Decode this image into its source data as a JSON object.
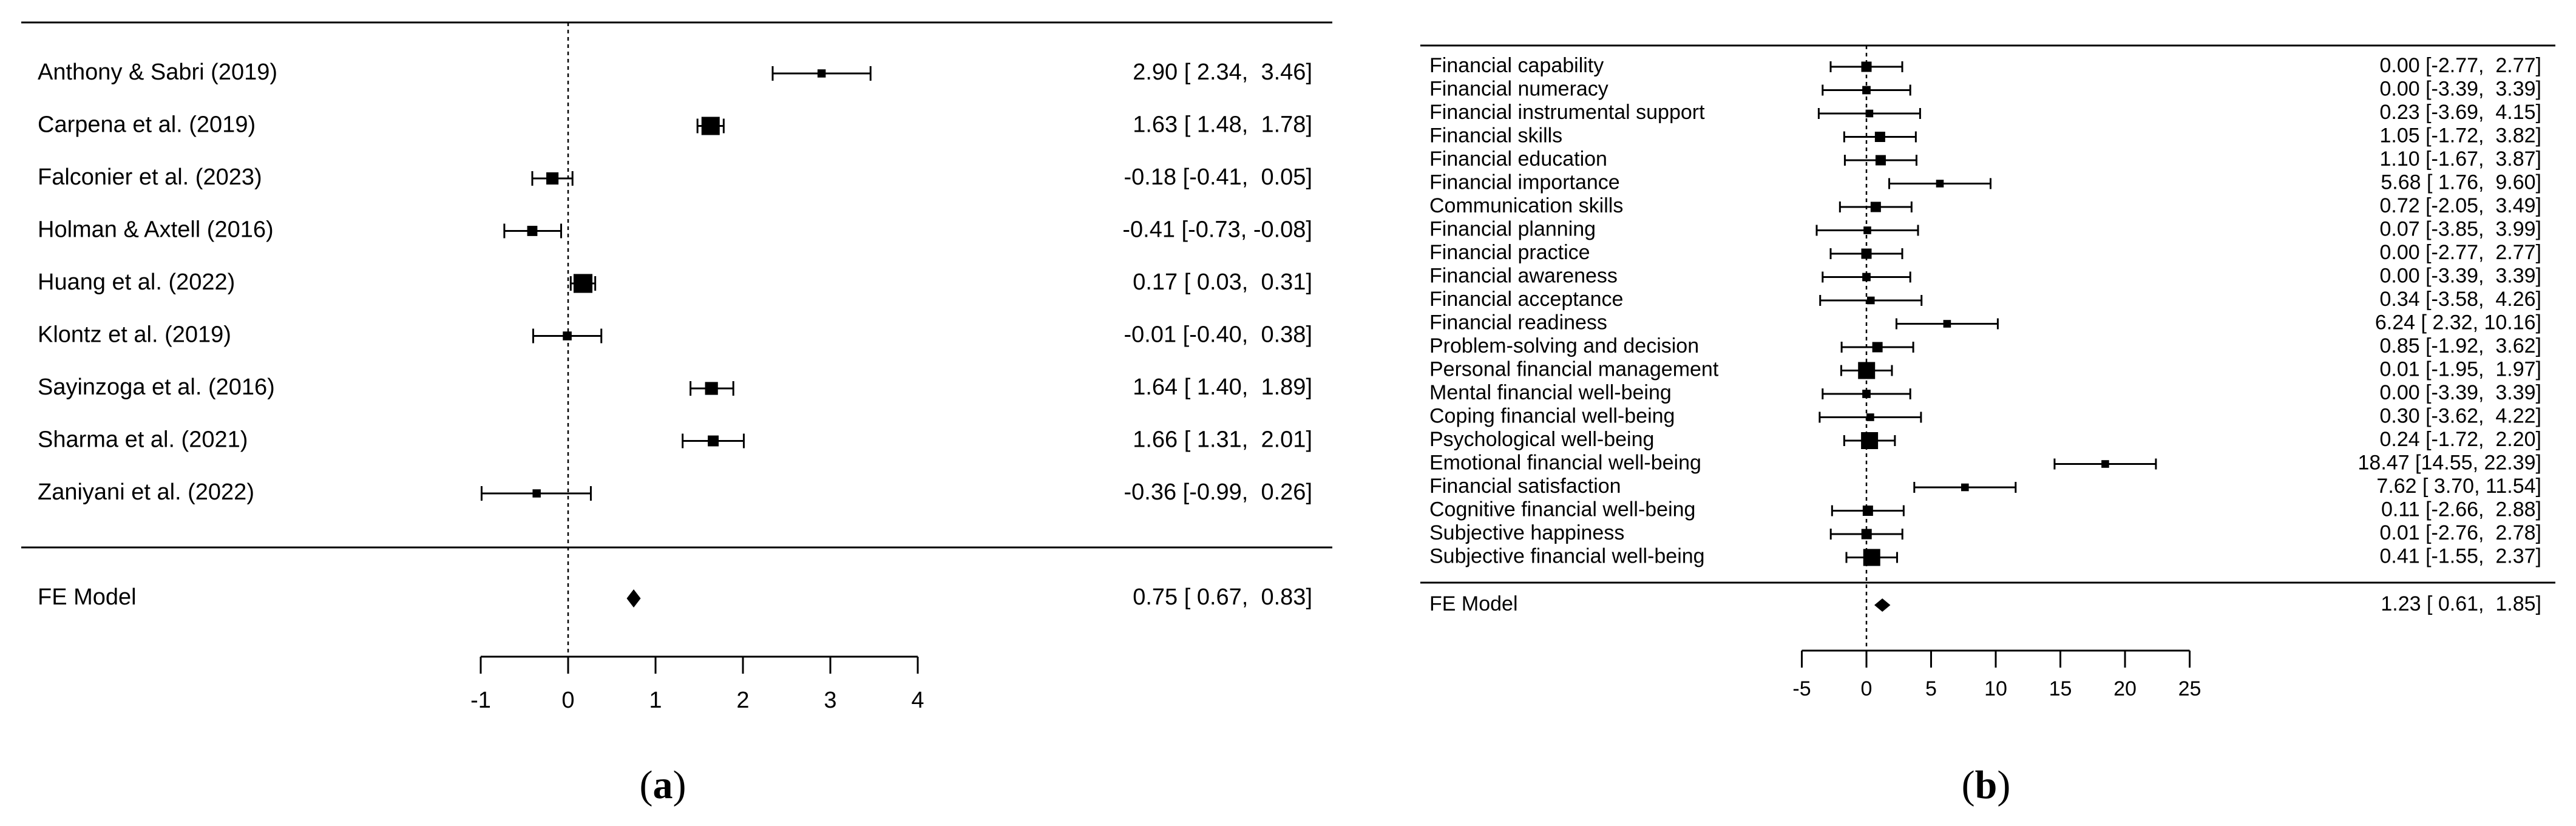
{
  "chart_data": [
    {
      "type": "forest",
      "panel_label": "a",
      "studies": [
        {
          "label": "Anthony & Sabri (2019)",
          "estimate": 2.9,
          "ci_low": 2.34,
          "ci_high": 3.46,
          "ci_text": "2.90 [ 2.34,  3.46]",
          "weight": 0.25
        },
        {
          "label": "Carpena et al. (2019)",
          "estimate": 1.63,
          "ci_low": 1.48,
          "ci_high": 1.78,
          "ci_text": "1.63 [ 1.48,  1.78]",
          "weight": 1.0
        },
        {
          "label": "Falconier et al. (2023)",
          "estimate": -0.18,
          "ci_low": -0.41,
          "ci_high": 0.05,
          "ci_text": "-0.18 [-0.41,  0.05]",
          "weight": 0.55
        },
        {
          "label": "Holman & Axtell (2016)",
          "estimate": -0.41,
          "ci_low": -0.73,
          "ci_high": -0.08,
          "ci_text": "-0.41 [-0.73, -0.08]",
          "weight": 0.4
        },
        {
          "label": "Huang et al. (2022)",
          "estimate": 0.17,
          "ci_low": 0.03,
          "ci_high": 0.31,
          "ci_text": "0.17 [ 0.03,  0.31]",
          "weight": 1.05
        },
        {
          "label": "Klontz et al. (2019)",
          "estimate": -0.01,
          "ci_low": -0.4,
          "ci_high": 0.38,
          "ci_text": "-0.01 [-0.40,  0.38]",
          "weight": 0.3
        },
        {
          "label": "Sayinzoga et al. (2016)",
          "estimate": 1.64,
          "ci_low": 1.4,
          "ci_high": 1.89,
          "ci_text": "1.64 [ 1.40,  1.89]",
          "weight": 0.6
        },
        {
          "label": "Sharma et al. (2021)",
          "estimate": 1.66,
          "ci_low": 1.31,
          "ci_high": 2.01,
          "ci_text": "1.66 [ 1.31,  2.01]",
          "weight": 0.45
        },
        {
          "label": "Zaniyani et al. (2022)",
          "estimate": -0.36,
          "ci_low": -0.99,
          "ci_high": 0.26,
          "ci_text": "-0.36 [-0.99,  0.26]",
          "weight": 0.25
        }
      ],
      "summary": {
        "label": "FE Model",
        "estimate": 0.75,
        "ci_low": 0.67,
        "ci_high": 0.83,
        "ci_text": "0.75 [ 0.67,  0.83]"
      },
      "reference_line": 0,
      "xlim": [
        -1,
        4
      ],
      "xticks": [
        -1,
        0,
        1,
        2,
        3,
        4
      ],
      "xtick_labels": [
        "-1",
        "0",
        "1",
        "2",
        "3",
        "4"
      ]
    },
    {
      "type": "forest",
      "panel_label": "b",
      "studies": [
        {
          "label": "Financial capability",
          "estimate": 0.0,
          "ci_low": -2.77,
          "ci_high": 2.77,
          "ci_text": "0.00 [-2.77,  2.77]",
          "weight": 0.5
        },
        {
          "label": "Financial numeracy",
          "estimate": 0.0,
          "ci_low": -3.39,
          "ci_high": 3.39,
          "ci_text": "0.00 [-3.39,  3.39]",
          "weight": 0.35
        },
        {
          "label": "Financial instrumental support",
          "estimate": 0.23,
          "ci_low": -3.69,
          "ci_high": 4.15,
          "ci_text": "0.23 [-3.69,  4.15]",
          "weight": 0.3
        },
        {
          "label": "Financial skills",
          "estimate": 1.05,
          "ci_low": -1.72,
          "ci_high": 3.82,
          "ci_text": "1.05 [-1.72,  3.82]",
          "weight": 0.5
        },
        {
          "label": "Financial education",
          "estimate": 1.1,
          "ci_low": -1.67,
          "ci_high": 3.87,
          "ci_text": "1.10 [-1.67,  3.87]",
          "weight": 0.5
        },
        {
          "label": "Financial importance",
          "estimate": 5.68,
          "ci_low": 1.76,
          "ci_high": 9.6,
          "ci_text": "5.68 [ 1.76,  9.60]",
          "weight": 0.3
        },
        {
          "label": "Communication skills",
          "estimate": 0.72,
          "ci_low": -2.05,
          "ci_high": 3.49,
          "ci_text": "0.72 [-2.05,  3.49]",
          "weight": 0.5
        },
        {
          "label": "Financial planning",
          "estimate": 0.07,
          "ci_low": -3.85,
          "ci_high": 3.99,
          "ci_text": "0.07 [-3.85,  3.99]",
          "weight": 0.3
        },
        {
          "label": "Financial practice",
          "estimate": 0.0,
          "ci_low": -2.77,
          "ci_high": 2.77,
          "ci_text": "0.00 [-2.77,  2.77]",
          "weight": 0.5
        },
        {
          "label": "Financial awareness",
          "estimate": 0.0,
          "ci_low": -3.39,
          "ci_high": 3.39,
          "ci_text": "0.00 [-3.39,  3.39]",
          "weight": 0.35
        },
        {
          "label": "Financial acceptance",
          "estimate": 0.34,
          "ci_low": -3.58,
          "ci_high": 4.26,
          "ci_text": "0.34 [-3.58,  4.26]",
          "weight": 0.3
        },
        {
          "label": "Financial readiness",
          "estimate": 6.24,
          "ci_low": 2.32,
          "ci_high": 10.16,
          "ci_text": "6.24 [ 2.32, 10.16]",
          "weight": 0.3
        },
        {
          "label": "Problem-solving and decision",
          "estimate": 0.85,
          "ci_low": -1.92,
          "ci_high": 3.62,
          "ci_text": "0.85 [-1.92,  3.62]",
          "weight": 0.5
        },
        {
          "label": "Personal financial management",
          "estimate": 0.01,
          "ci_low": -1.95,
          "ci_high": 1.97,
          "ci_text": "0.01 [-1.95,  1.97]",
          "weight": 1.0
        },
        {
          "label": "Mental financial well-being",
          "estimate": 0.0,
          "ci_low": -3.39,
          "ci_high": 3.39,
          "ci_text": "0.00 [-3.39,  3.39]",
          "weight": 0.35
        },
        {
          "label": "Coping financial well-being",
          "estimate": 0.3,
          "ci_low": -3.62,
          "ci_high": 4.22,
          "ci_text": "0.30 [-3.62,  4.22]",
          "weight": 0.3
        },
        {
          "label": "Psychological well-being",
          "estimate": 0.24,
          "ci_low": -1.72,
          "ci_high": 2.2,
          "ci_text": "0.24 [-1.72,  2.20]",
          "weight": 1.0
        },
        {
          "label": "Emotional financial well-being",
          "estimate": 18.47,
          "ci_low": 14.55,
          "ci_high": 22.39,
          "ci_text": "18.47 [14.55, 22.39]",
          "weight": 0.3
        },
        {
          "label": "Financial satisfaction",
          "estimate": 7.62,
          "ci_low": 3.7,
          "ci_high": 11.54,
          "ci_text": "7.62 [ 3.70, 11.54]",
          "weight": 0.3
        },
        {
          "label": "Cognitive financial well-being",
          "estimate": 0.11,
          "ci_low": -2.66,
          "ci_high": 2.88,
          "ci_text": "0.11 [-2.66,  2.88]",
          "weight": 0.5
        },
        {
          "label": "Subjective happiness",
          "estimate": 0.01,
          "ci_low": -2.76,
          "ci_high": 2.78,
          "ci_text": "0.01 [-2.76,  2.78]",
          "weight": 0.5
        },
        {
          "label": "Subjective financial well-being",
          "estimate": 0.41,
          "ci_low": -1.55,
          "ci_high": 2.37,
          "ci_text": "0.41 [-1.55,  2.37]",
          "weight": 1.0
        }
      ],
      "summary": {
        "label": "FE Model",
        "estimate": 1.23,
        "ci_low": 0.61,
        "ci_high": 1.85,
        "ci_text": "1.23 [ 0.61,  1.85]"
      },
      "reference_line": 0,
      "xlim": [
        -5,
        25
      ],
      "xticks": [
        -5,
        0,
        5,
        10,
        15,
        20,
        25
      ],
      "xtick_labels": [
        "-5",
        "0",
        "5",
        "10",
        "15",
        "20",
        "25"
      ]
    }
  ]
}
